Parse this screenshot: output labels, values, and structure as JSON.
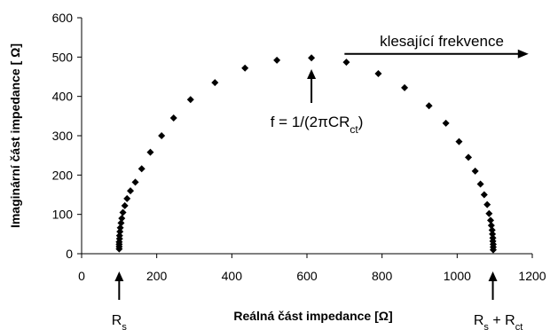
{
  "chart_data": {
    "type": "scatter",
    "title": "",
    "xlabel": "Reálná část impedance [Ω]",
    "ylabel": "Imaginární část impedance [ Ω]",
    "xlim": [
      0,
      1200
    ],
    "ylim": [
      0,
      600
    ],
    "xticks": [
      "0",
      "200",
      "400",
      "600",
      "800",
      "1000",
      "1200"
    ],
    "yticks": [
      "0",
      "100",
      "200",
      "300",
      "400",
      "500",
      "600"
    ],
    "grid": false,
    "marker": "diamond",
    "marker_color": "#000000",
    "series": [
      {
        "x": [
          100,
          100,
          100,
          100,
          101,
          101,
          102,
          103,
          105,
          107,
          110,
          115,
          121,
          130,
          143,
          160,
          183,
          213,
          245,
          290,
          355,
          435,
          520,
          612,
          705,
          790,
          860,
          925,
          970,
          1005,
          1030,
          1048,
          1062,
          1072,
          1080,
          1085,
          1089,
          1091,
          1093,
          1094,
          1095,
          1095,
          1096,
          1096,
          1096
        ],
        "y": [
          12,
          18,
          24,
          30,
          38,
          46,
          56,
          66,
          78,
          90,
          105,
          122,
          140,
          160,
          182,
          216,
          258,
          300,
          345,
          392,
          435,
          472,
          492,
          498,
          487,
          458,
          422,
          376,
          332,
          285,
          245,
          210,
          177,
          150,
          125,
          102,
          85,
          72,
          60,
          50,
          40,
          32,
          24,
          17,
          10
        ]
      }
    ],
    "annotations": {
      "rs": {
        "text": "R",
        "sub": "s",
        "x": 100
      },
      "rs_rct": {
        "text": "R",
        "sub1": "s",
        "mid": " + R",
        "sub2": "ct",
        "x": 1095
      },
      "peak": {
        "prefix": "f = 1/(2",
        "pi": "π",
        "mid": "CR",
        "sub": "ct",
        "suffix": ")",
        "x": 612
      },
      "arrow_text": "klesající frekvence",
      "arrow_from_x": 700,
      "arrow_to_x": 1190,
      "arrow_y": 508
    }
  }
}
